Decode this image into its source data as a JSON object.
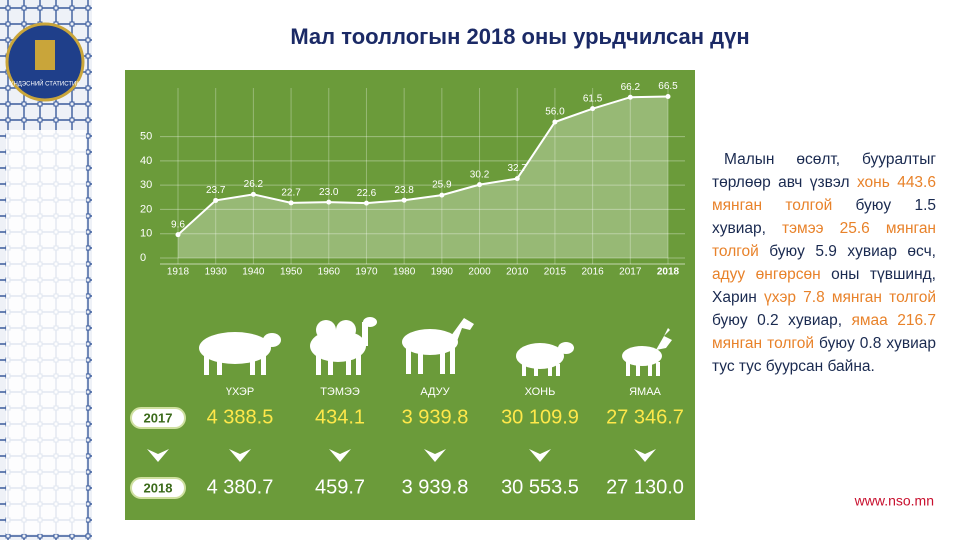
{
  "header": {
    "title": "Мал тооллогын 2018 оны урьдчилсан дүн",
    "logo_text": "ҮНДЭСНИЙ СТАТИСТИК"
  },
  "chart_data": {
    "type": "area",
    "categories": [
      "1918",
      "1930",
      "1940",
      "1950",
      "1960",
      "1970",
      "1980",
      "1990",
      "2000",
      "2010",
      "2015",
      "2016",
      "2017",
      "2018"
    ],
    "values": [
      9.6,
      23.7,
      26.2,
      22.7,
      23.0,
      22.6,
      23.8,
      25.9,
      30.2,
      32.7,
      56.0,
      61.5,
      66.2,
      66.5
    ],
    "value_labels": [
      "9.6",
      "23.7",
      "26.2",
      "22.7",
      "23.0",
      "22.6",
      "23.8",
      "25.9",
      "30.2",
      "32.7",
      "56.0",
      "61.5",
      "66.2",
      "66.5"
    ],
    "ylim": [
      0,
      70
    ],
    "yticks": [
      0,
      10,
      20,
      30,
      40,
      50
    ],
    "color": "#ffffff",
    "grid": true
  },
  "livestock": {
    "years": [
      "2017",
      "2018"
    ],
    "animals": [
      {
        "name": "ҮХЭР",
        "y2017": "4 388.5",
        "y2018": "4 380.7"
      },
      {
        "name": "ТЭМЭЭ",
        "y2017": "434.1",
        "y2018": "459.7"
      },
      {
        "name": "АДУУ",
        "y2017": "3 939.8",
        "y2018": "3 939.8"
      },
      {
        "name": "ХОНЬ",
        "y2017": "30 109.9",
        "y2018": "30 553.5"
      },
      {
        "name": "ЯМАА",
        "y2017": "27 346.7",
        "y2018": "27 130.0"
      }
    ]
  },
  "text": {
    "highlight_color": "#e8822a",
    "segments": [
      {
        "text": "Малын өсөлт, бууралтыг төрлөөр авч үзвэл ",
        "highlight": false
      },
      {
        "text": "хонь 443.6 мянган толгой",
        "highlight": true
      },
      {
        "text": " буюу 1.5 хувиар, ",
        "highlight": false
      },
      {
        "text": "тэмээ 25.6 мянган толгой",
        "highlight": true
      },
      {
        "text": " буюу 5.9 хувиар өсч, ",
        "highlight": false
      },
      {
        "text": "адуу өнгөрсөн",
        "highlight": true
      },
      {
        "text": " оны түвшинд, Харин ",
        "highlight": false
      },
      {
        "text": "үхэр 7.8 мянган толгой",
        "highlight": true
      },
      {
        "text": " буюу 0.2 хувиар, ",
        "highlight": false
      },
      {
        "text": "ямаа 216.7 мянган толгой",
        "highlight": true
      },
      {
        "text": " буюу 0.8 хувиар тус тус буурсан байна.",
        "highlight": false
      }
    ]
  },
  "footer": {
    "url": "www.nso.mn"
  }
}
